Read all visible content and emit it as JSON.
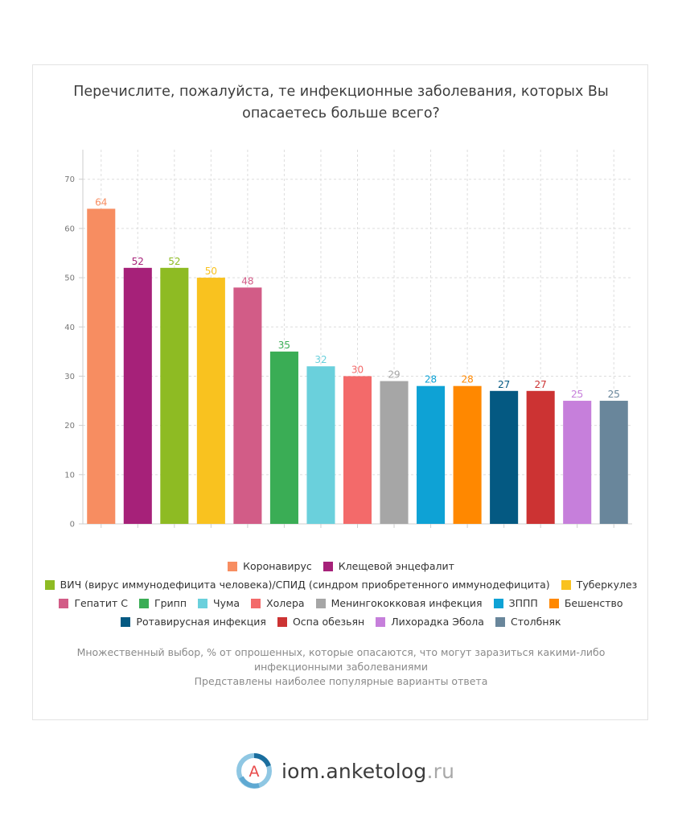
{
  "title_lines": [
    "Перечислите, пожалуйста, те инфекционные заболевания, которых Вы",
    "опасаетесь больше всего?"
  ],
  "chart_data": {
    "type": "bar",
    "title": "Перечислите, пожалуйста, те инфекционные заболевания, которых Вы опасаетесь больше всего?",
    "categories": [
      "Коронавирус",
      "Клещевой энцефалит",
      "ВИЧ (вирус иммунодефицита человека)/СПИД (синдром приобретенного иммунодефицита)",
      "Туберкулез",
      "Гепатит С",
      "Грипп",
      "Чума",
      "Холера",
      "Менингококковая инфекция",
      "ЗППП",
      "Бешенство",
      "Ротавирусная инфекция",
      "Оспа обезьян",
      "Лихорадка Эбола",
      "Столбняк"
    ],
    "values": [
      64,
      52,
      52,
      50,
      48,
      35,
      32,
      30,
      29,
      28,
      28,
      27,
      27,
      25,
      25
    ],
    "colors": [
      "#F78D61",
      "#A62179",
      "#8EBB23",
      "#F9C21F",
      "#D25C87",
      "#3AAD55",
      "#6AD0DC",
      "#F36A6A",
      "#A6A6A6",
      "#0EA2D5",
      "#FF8800",
      "#045982",
      "#CC3333",
      "#C67FDB",
      "#69869B"
    ],
    "label_colors": [
      "#F78D61",
      "#A62179",
      "#8EBB23",
      "#F9C21F",
      "#D25C87",
      "#3AAD55",
      "#6AD0DC",
      "#F36A6A",
      "#A6A6A6",
      "#0EA2D5",
      "#FF8800",
      "#045982",
      "#CC3333",
      "#C67FDB",
      "#69869B"
    ],
    "yticks": [
      0,
      10,
      20,
      30,
      40,
      50,
      60,
      70
    ],
    "ylim": [
      0,
      76
    ],
    "xlabel": "",
    "ylabel": "",
    "grid": true,
    "legend": "bottom"
  },
  "legend_rows": [
    [
      0,
      1
    ],
    [
      2,
      3
    ],
    [
      4,
      5,
      6,
      7,
      8,
      9,
      10
    ],
    [
      11,
      12,
      13,
      14
    ]
  ],
  "note_lines": [
    "Множественный выбор, % от опрошенных, которые опасаются, что могут заразиться какими-либо",
    "инфекционными заболеваниями",
    "Представлены наиболее популярные варианты ответа"
  ],
  "brand": {
    "name": "iom.anketolog",
    "tld": ".ru",
    "logo_letter": "A"
  }
}
